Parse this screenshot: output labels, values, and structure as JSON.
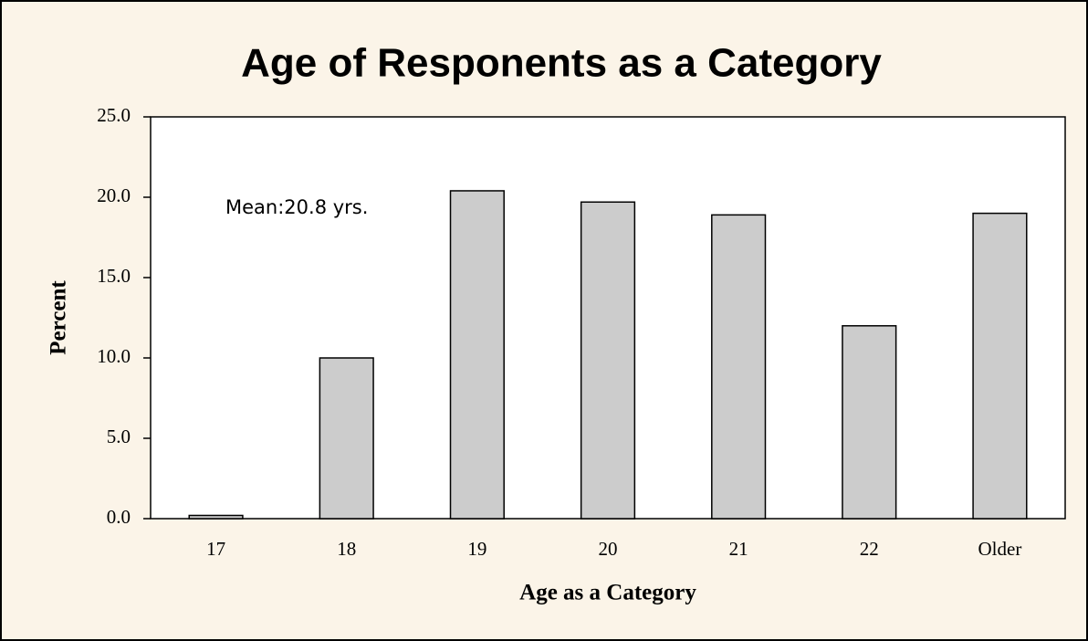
{
  "chart_data": {
    "type": "bar",
    "title": "Age of Responents as a Category",
    "x_label": "Age as a Category",
    "y_label": "Percent",
    "annotation": "Mean:20.8 yrs.",
    "categories": [
      "17",
      "18",
      "19",
      "20",
      "21",
      "22",
      "Older"
    ],
    "values": [
      0.2,
      10.0,
      20.4,
      19.7,
      18.9,
      12.0,
      19.0
    ],
    "color": "#cccccc",
    "ylim": [
      0,
      25
    ],
    "yticks": [
      {
        "value": 0,
        "label": "0.0"
      },
      {
        "value": 5,
        "label": "5.0"
      },
      {
        "value": 10,
        "label": "10.0"
      },
      {
        "value": 15,
        "label": "15.0"
      },
      {
        "value": 20,
        "label": "20.0"
      },
      {
        "value": 25,
        "label": "25.0"
      }
    ],
    "grid": false
  }
}
